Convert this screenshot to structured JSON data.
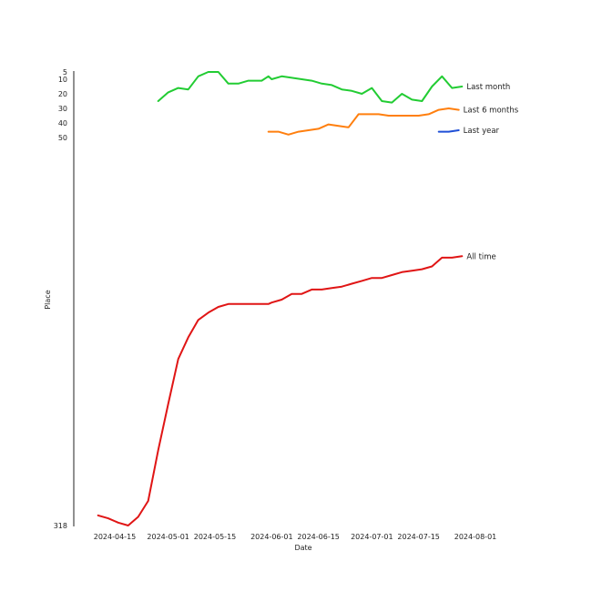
{
  "chart_data": {
    "type": "line",
    "xlabel": "Date",
    "ylabel": "Place",
    "x_ticks": [
      "2024-04-15",
      "2024-05-01",
      "2024-05-15",
      "2024-06-01",
      "2024-06-15",
      "2024-07-01",
      "2024-07-15",
      "2024-08-01"
    ],
    "y_ticks": [
      "5",
      "10",
      "20",
      "30",
      "40",
      "50",
      "318"
    ],
    "y_inverted": true,
    "y_scale": "piecewise-linear",
    "series": [
      {
        "name": "Last month",
        "color": "#22cc33",
        "x": [
          "2024-04-28",
          "2024-05-01",
          "2024-05-04",
          "2024-05-07",
          "2024-05-10",
          "2024-05-13",
          "2024-05-16",
          "2024-05-19",
          "2024-05-22",
          "2024-05-25",
          "2024-05-29",
          "2024-05-31",
          "2024-06-01",
          "2024-06-04",
          "2024-06-07",
          "2024-06-10",
          "2024-06-13",
          "2024-06-16",
          "2024-06-19",
          "2024-06-22",
          "2024-06-25",
          "2024-06-28",
          "2024-07-01",
          "2024-07-04",
          "2024-07-07",
          "2024-07-10",
          "2024-07-13",
          "2024-07-16",
          "2024-07-19",
          "2024-07-22",
          "2024-07-25",
          "2024-07-28"
        ],
        "values": [
          25,
          19,
          16,
          17,
          8,
          5,
          5,
          13,
          13,
          11,
          11,
          8,
          10,
          8,
          9,
          10,
          11,
          13,
          14,
          17,
          18,
          20,
          16,
          25,
          26,
          20,
          24,
          25,
          15,
          8,
          16,
          15
        ]
      },
      {
        "name": "Last 6 months",
        "color": "#ff7f0e",
        "x": [
          "2024-05-31",
          "2024-06-03",
          "2024-06-06",
          "2024-06-09",
          "2024-06-12",
          "2024-06-15",
          "2024-06-18",
          "2024-06-21",
          "2024-06-24",
          "2024-06-27",
          "2024-06-30",
          "2024-07-03",
          "2024-07-06",
          "2024-07-09",
          "2024-07-12",
          "2024-07-15",
          "2024-07-18",
          "2024-07-21",
          "2024-07-24",
          "2024-07-27"
        ],
        "values": [
          46,
          46,
          48,
          46,
          45,
          44,
          41,
          42,
          43,
          34,
          34,
          34,
          35,
          35,
          35,
          35,
          34,
          31,
          30,
          31
        ]
      },
      {
        "name": "Last year",
        "color": "#1f4fd6",
        "x": [
          "2024-07-21",
          "2024-07-24",
          "2024-07-27"
        ],
        "values": [
          46,
          46,
          45
        ]
      },
      {
        "name": "All time",
        "color": "#e01515",
        "x": [
          "2024-04-10",
          "2024-04-13",
          "2024-04-16",
          "2024-04-19",
          "2024-04-22",
          "2024-04-25",
          "2024-04-28",
          "2024-05-01",
          "2024-05-04",
          "2024-05-07",
          "2024-05-10",
          "2024-05-13",
          "2024-05-16",
          "2024-05-19",
          "2024-05-22",
          "2024-05-25",
          "2024-05-28",
          "2024-05-31",
          "2024-06-01",
          "2024-06-04",
          "2024-06-07",
          "2024-06-10",
          "2024-06-13",
          "2024-06-16",
          "2024-06-19",
          "2024-06-22",
          "2024-06-25",
          "2024-06-28",
          "2024-07-01",
          "2024-07-04",
          "2024-07-07",
          "2024-07-10",
          "2024-07-13",
          "2024-07-16",
          "2024-07-19",
          "2024-07-22",
          "2024-07-25",
          "2024-07-28"
        ],
        "values": [
          311,
          313,
          316,
          318,
          312,
          301,
          266,
          234,
          203,
          188,
          176,
          171,
          167,
          165,
          165,
          165,
          165,
          165,
          164,
          162,
          158,
          158,
          155,
          155,
          154,
          153,
          151,
          149,
          147,
          147,
          145,
          143,
          142,
          141,
          139,
          133,
          133,
          132
        ]
      }
    ]
  }
}
